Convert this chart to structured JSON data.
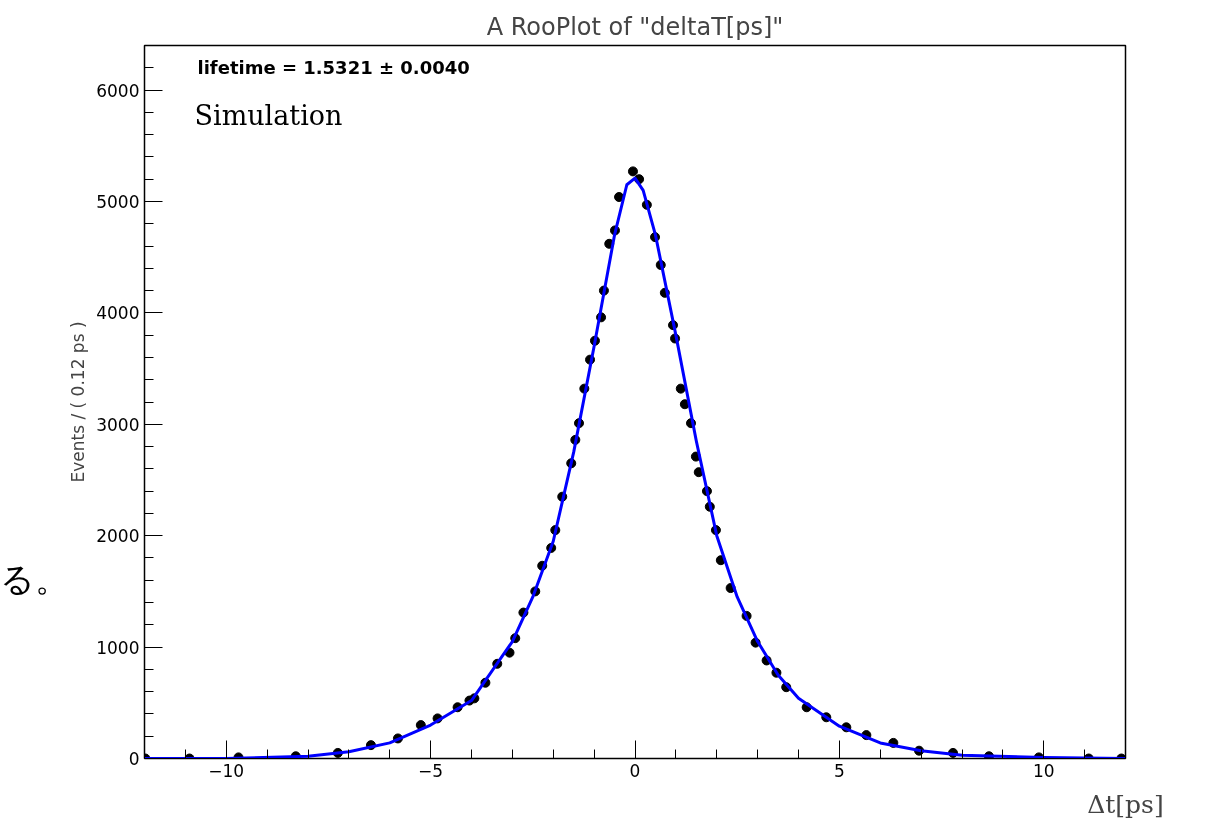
{
  "chart_data": {
    "type": "scatter",
    "title": "A RooPlot of \"deltaT[ps]\"",
    "xlabel": "Δt[ps]",
    "ylabel": "Events / ( 0.12 ps )",
    "annotations": [
      "lifetime =  1.5321 ± 0.0040",
      "Simulation",
      "る。"
    ],
    "series": [
      {
        "color": "#000000",
        "marker": "circle",
        "x": [
          -11.98,
          -10.9,
          -9.7,
          -8.3,
          -7.27,
          -6.46,
          -5.8,
          -5.24,
          -4.83,
          -4.34,
          -4.05,
          -3.93,
          -3.66,
          -3.37,
          -3.07,
          -2.93,
          -2.73,
          -2.44,
          -2.27,
          -2.05,
          -1.95,
          -1.78,
          -1.56,
          -1.46,
          -1.37,
          -1.24,
          -1.1,
          -0.98,
          -0.83,
          -0.76,
          -0.63,
          -0.49,
          -0.39,
          -0.05,
          0.1,
          0.29,
          0.49,
          0.63,
          0.73,
          0.93,
          0.98,
          1.12,
          1.22,
          1.37,
          1.49,
          1.56,
          1.76,
          1.83,
          1.98,
          2.1,
          2.34,
          2.73,
          2.95,
          3.22,
          3.46,
          3.7,
          4.2,
          4.68,
          5.17,
          5.66,
          6.32,
          6.95,
          7.78,
          8.66,
          9.88,
          11.1,
          11.9
        ],
        "values": [
          0,
          0,
          10,
          20,
          50,
          120,
          180,
          300,
          360,
          460,
          520,
          540,
          680,
          850,
          950,
          1080,
          1310,
          1500,
          1730,
          1890,
          2050,
          2350,
          2650,
          2860,
          3010,
          3320,
          3580,
          3750,
          3960,
          4200,
          4620,
          4740,
          5040,
          5270,
          5200,
          4970,
          4680,
          4430,
          4180,
          3890,
          3770,
          3320,
          3180,
          3010,
          2710,
          2570,
          2400,
          2260,
          2050,
          1780,
          1530,
          1280,
          1040,
          880,
          770,
          640,
          460,
          370,
          280,
          210,
          140,
          70,
          50,
          20,
          10,
          0,
          0
        ]
      },
      {
        "type": "line",
        "color": "#0000ff",
        "x": [
          -12,
          -10,
          -8,
          -7,
          -6,
          -5,
          -4,
          -3,
          -2.5,
          -2,
          -1.5,
          -1,
          -0.5,
          -0.2,
          0,
          0.2,
          0.5,
          1,
          1.5,
          2,
          2.5,
          3,
          3.5,
          4,
          5,
          6,
          7,
          8,
          10,
          12
        ],
        "values": [
          0,
          0,
          20,
          60,
          140,
          300,
          520,
          1050,
          1450,
          1950,
          2750,
          3700,
          4700,
          5150,
          5210,
          5100,
          4700,
          3800,
          2850,
          2000,
          1450,
          1050,
          750,
          540,
          290,
          140,
          70,
          30,
          10,
          0
        ]
      }
    ],
    "xlim": [
      -12,
      12
    ],
    "ylim": [
      0,
      6400
    ],
    "xticks": [
      -10,
      -5,
      0,
      5,
      10
    ],
    "yticks": [
      0,
      1000,
      2000,
      3000,
      4000,
      5000,
      6000
    ],
    "grid": false
  }
}
